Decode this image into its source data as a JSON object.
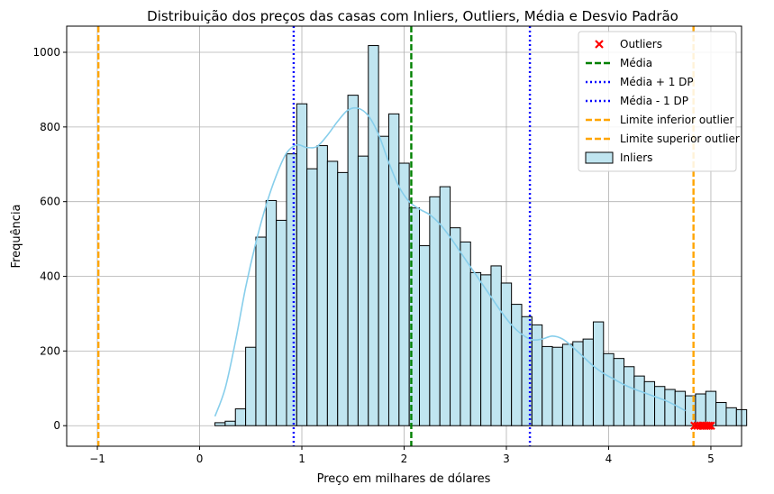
{
  "chart_data": {
    "type": "histogram",
    "title": "Distribuição dos preços das casas com Inliers, Outliers, Média e Desvio Padrão",
    "xlabel": "Preço em milhares de dólares",
    "ylabel": "Frequência",
    "xlim": [
      -1.3,
      5.3
    ],
    "ylim": [
      -55,
      1070
    ],
    "xticks": [
      -1,
      0,
      1,
      2,
      3,
      4,
      5
    ],
    "yticks": [
      0,
      200,
      400,
      600,
      800,
      1000
    ],
    "grid": true,
    "legend_position": "top-right",
    "bins": {
      "start": 0.15,
      "width": 0.1,
      "counts": [
        8,
        12,
        45,
        210,
        505,
        603,
        550,
        728,
        862,
        688,
        750,
        708,
        678,
        885,
        722,
        1018,
        775,
        835,
        703,
        583,
        482,
        613,
        640,
        530,
        492,
        410,
        404,
        428,
        382,
        325,
        292,
        270,
        212,
        210,
        218,
        225,
        232,
        278,
        193,
        180,
        158,
        133,
        118,
        105,
        97,
        92,
        80,
        85,
        92,
        62,
        48,
        43
      ]
    },
    "kde": {
      "x": [
        0.15,
        0.25,
        0.35,
        0.45,
        0.55,
        0.65,
        0.75,
        0.85,
        0.95,
        1.05,
        1.15,
        1.25,
        1.35,
        1.45,
        1.55,
        1.65,
        1.75,
        1.85,
        1.95,
        2.05,
        2.15,
        2.25,
        2.35,
        2.45,
        2.55,
        2.65,
        2.75,
        2.85,
        2.95,
        3.05,
        3.15,
        3.25,
        3.35,
        3.45,
        3.55,
        3.65,
        3.75,
        3.85,
        3.95,
        4.05,
        4.15,
        4.25,
        4.35,
        4.45,
        4.55,
        4.65,
        4.75
      ],
      "y": [
        25,
        100,
        225,
        370,
        490,
        590,
        670,
        730,
        752,
        745,
        748,
        778,
        815,
        845,
        850,
        830,
        780,
        705,
        640,
        600,
        580,
        565,
        540,
        505,
        465,
        425,
        385,
        345,
        305,
        270,
        245,
        230,
        232,
        240,
        232,
        210,
        185,
        160,
        140,
        125,
        110,
        98,
        88,
        78,
        68,
        55,
        40
      ]
    },
    "outliers": {
      "x": [
        4.84,
        4.87,
        4.9,
        4.92,
        4.94,
        4.96,
        4.98,
        5.0
      ],
      "y": [
        0,
        0,
        0,
        0,
        0,
        0,
        0,
        0
      ]
    },
    "mean": 2.07,
    "mean_plus_sd": 3.23,
    "mean_minus_sd": 0.92,
    "lower_outlier_limit": -0.99,
    "upper_outlier_limit": 4.83,
    "colors": {
      "bar_fill": "#c0e5f0",
      "bar_edge": "#000000",
      "kde": "#87ceeb",
      "mean": "#008000",
      "sd": "#0000ff",
      "limit": "#ffa500",
      "outlier": "#ff0000",
      "grid": "#b0b0b0"
    },
    "legend": [
      {
        "label": "Outliers",
        "kind": "marker",
        "color": "#ff0000"
      },
      {
        "label": "Média",
        "kind": "dash",
        "color": "#008000"
      },
      {
        "label": "Média + 1 DP",
        "kind": "dot",
        "color": "#0000ff"
      },
      {
        "label": "Média - 1 DP",
        "kind": "dot",
        "color": "#0000ff"
      },
      {
        "label": "Limite inferior outlier",
        "kind": "dash",
        "color": "#ffa500"
      },
      {
        "label": "Limite superior outlier",
        "kind": "dash",
        "color": "#ffa500"
      },
      {
        "label": "Inliers",
        "kind": "patch",
        "color": "#c0e5f0"
      }
    ]
  }
}
